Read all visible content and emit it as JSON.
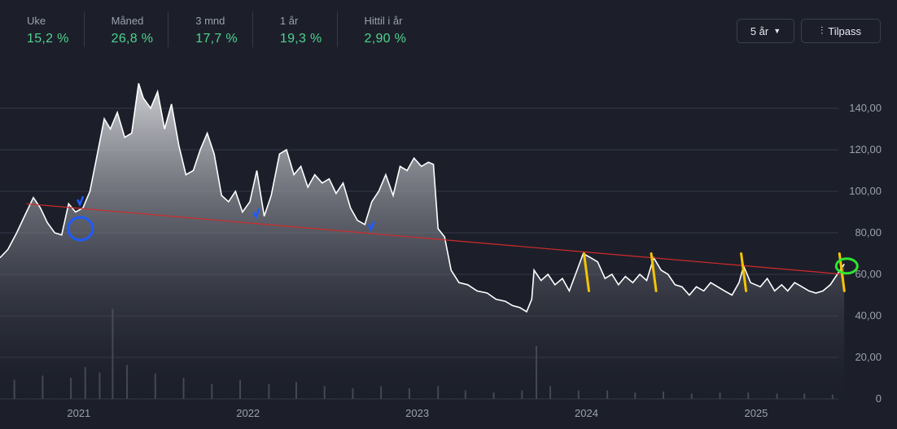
{
  "stats": [
    {
      "label": "Uke",
      "value": "15,2 %"
    },
    {
      "label": "Måned",
      "value": "26,8 %"
    },
    {
      "label": "3 mnd",
      "value": "17,7 %"
    },
    {
      "label": "1 år",
      "value": "19,3 %"
    },
    {
      "label": "Hittil i år",
      "value": "2,90 %"
    }
  ],
  "controls": {
    "period_label": "5 år",
    "period_icon": "caret-down-icon",
    "custom_label": "Tilpass",
    "custom_icon": "sliders-icon"
  },
  "colors": {
    "background": "#1c1f2a",
    "price_line": "#ffffff",
    "positive": "#4ed38f",
    "trendline": "#d32a2a",
    "marker_yellow": "#f5c400",
    "marker_blue": "#1f5bff",
    "marker_green": "#2ee62e"
  },
  "chart_data": {
    "type": "area",
    "title": "",
    "xlabel": "",
    "ylabel": "",
    "x_ticks": [
      "2021",
      "2022",
      "2023",
      "2024",
      "2025"
    ],
    "y_ticks": [
      "0",
      "20,00",
      "40,00",
      "60,00",
      "80,00",
      "100,00",
      "120,00",
      "140,00"
    ],
    "ylim": [
      0,
      160
    ],
    "xlim": [
      "2020-07-15",
      "2025-07-15"
    ],
    "grid": true,
    "series": [
      {
        "points": [
          [
            "2020-07-15",
            68
          ],
          [
            "2020-08-01",
            72
          ],
          [
            "2020-08-20",
            80
          ],
          [
            "2020-09-10",
            90
          ],
          [
            "2020-09-25",
            97
          ],
          [
            "2020-10-10",
            92
          ],
          [
            "2020-10-25",
            85
          ],
          [
            "2020-11-10",
            80
          ],
          [
            "2020-11-25",
            79
          ],
          [
            "2020-12-10",
            94
          ],
          [
            "2020-12-25",
            90
          ],
          [
            "2021-01-10",
            92
          ],
          [
            "2021-01-25",
            100
          ],
          [
            "2021-02-10",
            118
          ],
          [
            "2021-02-25",
            135
          ],
          [
            "2021-03-10",
            130
          ],
          [
            "2021-03-25",
            138
          ],
          [
            "2021-04-10",
            126
          ],
          [
            "2021-04-25",
            128
          ],
          [
            "2021-05-10",
            152
          ],
          [
            "2021-05-20",
            145
          ],
          [
            "2021-06-05",
            140
          ],
          [
            "2021-06-20",
            148
          ],
          [
            "2021-07-05",
            130
          ],
          [
            "2021-07-20",
            142
          ],
          [
            "2021-08-05",
            122
          ],
          [
            "2021-08-20",
            108
          ],
          [
            "2021-09-05",
            110
          ],
          [
            "2021-09-20",
            120
          ],
          [
            "2021-10-05",
            128
          ],
          [
            "2021-10-20",
            118
          ],
          [
            "2021-11-05",
            98
          ],
          [
            "2021-11-20",
            95
          ],
          [
            "2021-12-05",
            100
          ],
          [
            "2021-12-20",
            90
          ],
          [
            "2022-01-05",
            95
          ],
          [
            "2022-01-20",
            110
          ],
          [
            "2022-02-05",
            88
          ],
          [
            "2022-02-20",
            98
          ],
          [
            "2022-03-10",
            118
          ],
          [
            "2022-03-25",
            120
          ],
          [
            "2022-04-10",
            108
          ],
          [
            "2022-04-25",
            112
          ],
          [
            "2022-05-10",
            102
          ],
          [
            "2022-05-25",
            108
          ],
          [
            "2022-06-10",
            104
          ],
          [
            "2022-06-25",
            106
          ],
          [
            "2022-07-10",
            99
          ],
          [
            "2022-07-25",
            104
          ],
          [
            "2022-08-10",
            92
          ],
          [
            "2022-08-25",
            86
          ],
          [
            "2022-09-10",
            84
          ],
          [
            "2022-09-25",
            95
          ],
          [
            "2022-10-10",
            100
          ],
          [
            "2022-10-25",
            108
          ],
          [
            "2022-11-10",
            98
          ],
          [
            "2022-11-25",
            112
          ],
          [
            "2022-12-10",
            110
          ],
          [
            "2022-12-25",
            116
          ],
          [
            "2023-01-10",
            112
          ],
          [
            "2023-01-25",
            114
          ],
          [
            "2023-02-05",
            113
          ],
          [
            "2023-02-15",
            82
          ],
          [
            "2023-03-01",
            78
          ],
          [
            "2023-03-15",
            62
          ],
          [
            "2023-04-01",
            56
          ],
          [
            "2023-04-20",
            55
          ],
          [
            "2023-05-10",
            52
          ],
          [
            "2023-06-01",
            51
          ],
          [
            "2023-06-20",
            48
          ],
          [
            "2023-07-10",
            47
          ],
          [
            "2023-07-25",
            45
          ],
          [
            "2023-08-10",
            44
          ],
          [
            "2023-08-25",
            42
          ],
          [
            "2023-09-05",
            48
          ],
          [
            "2023-09-10",
            62
          ],
          [
            "2023-09-25",
            57
          ],
          [
            "2023-10-10",
            60
          ],
          [
            "2023-10-25",
            55
          ],
          [
            "2023-11-10",
            58
          ],
          [
            "2023-11-25",
            52
          ],
          [
            "2023-12-10",
            61
          ],
          [
            "2023-12-25",
            70
          ],
          [
            "2024-01-10",
            68
          ],
          [
            "2024-01-25",
            66
          ],
          [
            "2024-02-10",
            58
          ],
          [
            "2024-02-25",
            60
          ],
          [
            "2024-03-10",
            55
          ],
          [
            "2024-03-25",
            59
          ],
          [
            "2024-04-10",
            56
          ],
          [
            "2024-04-25",
            60
          ],
          [
            "2024-05-10",
            57
          ],
          [
            "2024-05-25",
            68
          ],
          [
            "2024-06-10",
            62
          ],
          [
            "2024-06-25",
            60
          ],
          [
            "2024-07-10",
            55
          ],
          [
            "2024-07-25",
            54
          ],
          [
            "2024-08-10",
            50
          ],
          [
            "2024-08-25",
            54
          ],
          [
            "2024-09-10",
            52
          ],
          [
            "2024-09-25",
            56
          ],
          [
            "2024-10-10",
            54
          ],
          [
            "2024-10-25",
            52
          ],
          [
            "2024-11-10",
            50
          ],
          [
            "2024-11-25",
            56
          ],
          [
            "2024-12-05",
            64
          ],
          [
            "2024-12-20",
            56
          ],
          [
            "2025-01-10",
            54
          ],
          [
            "2025-01-25",
            58
          ],
          [
            "2025-02-10",
            52
          ],
          [
            "2025-02-25",
            55
          ],
          [
            "2025-03-10",
            52
          ],
          [
            "2025-03-25",
            56
          ],
          [
            "2025-04-10",
            54
          ],
          [
            "2025-04-25",
            52
          ],
          [
            "2025-05-10",
            51
          ],
          [
            "2025-05-25",
            52
          ],
          [
            "2025-06-10",
            55
          ],
          [
            "2025-06-25",
            60
          ],
          [
            "2025-07-10",
            65
          ]
        ]
      }
    ],
    "volume": {
      "unit_note": "relative 0-1 of max",
      "points": [
        [
          "2020-08",
          0.18
        ],
        [
          "2020-10",
          0.22
        ],
        [
          "2020-12",
          0.2
        ],
        [
          "2021-01",
          0.3
        ],
        [
          "2021-02",
          0.25
        ],
        [
          "2021-03",
          0.85
        ],
        [
          "2021-04",
          0.32
        ],
        [
          "2021-06",
          0.24
        ],
        [
          "2021-08",
          0.2
        ],
        [
          "2021-10",
          0.14
        ],
        [
          "2021-12",
          0.18
        ],
        [
          "2022-02",
          0.14
        ],
        [
          "2022-04",
          0.16
        ],
        [
          "2022-06",
          0.12
        ],
        [
          "2022-08",
          0.1
        ],
        [
          "2022-10",
          0.12
        ],
        [
          "2022-12",
          0.1
        ],
        [
          "2023-02",
          0.12
        ],
        [
          "2023-04",
          0.08
        ],
        [
          "2023-06",
          0.06
        ],
        [
          "2023-08",
          0.08
        ],
        [
          "2023-09",
          0.5
        ],
        [
          "2023-10",
          0.12
        ],
        [
          "2023-12",
          0.08
        ],
        [
          "2024-02",
          0.08
        ],
        [
          "2024-04",
          0.06
        ],
        [
          "2024-06",
          0.07
        ],
        [
          "2024-08",
          0.05
        ],
        [
          "2024-10",
          0.06
        ],
        [
          "2024-12",
          0.06
        ],
        [
          "2025-02",
          0.05
        ],
        [
          "2025-04",
          0.05
        ],
        [
          "2025-06",
          0.04
        ]
      ]
    },
    "annotations": {
      "trendline": {
        "from": [
          "2020-09-10",
          94
        ],
        "to": [
          "2025-07-10",
          60
        ]
      },
      "yellow_marks": [
        "2024-01-01",
        "2024-05-25",
        "2024-12-05",
        "2025-07-05"
      ],
      "blue_marks": [
        "2021-01-01",
        "2021-01-05",
        "2022-01-20",
        "2022-09-25"
      ],
      "green_circle": "2025-07-05"
    }
  }
}
